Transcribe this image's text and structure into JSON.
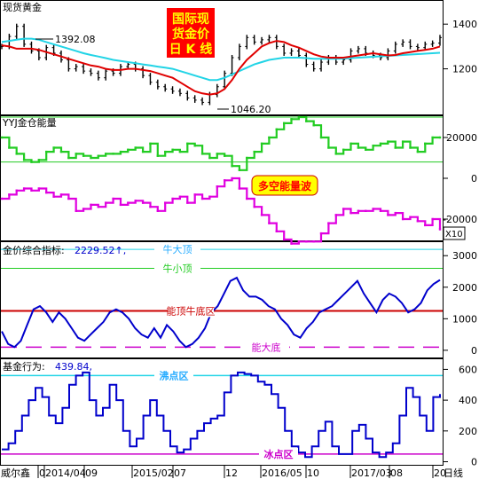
{
  "colors": {
    "price_bar": "#000000",
    "ma_short": "#e00000",
    "ma_long": "#22d4e6",
    "bull_energy": "#22cc22",
    "bear_energy": "#e000e0",
    "ref_green": "#22cc22",
    "indicator_line": "#0000cc",
    "red_line": "#cc0000",
    "cyan_line": "#22d4e6",
    "magenta_line": "#cc00cc",
    "title_box_bg": "#ff0000",
    "title_box_text": "#ffff00",
    "label_box_bg": "#ffff00",
    "label_box_text": "#ff0000"
  },
  "chart_data": [
    {
      "type": "candlestick",
      "panel_title": "现货黄金",
      "title_box": [
        "国际现",
        "货金价",
        "日 K 线"
      ],
      "annotations": [
        "1392.08",
        "1046.20"
      ],
      "ylim": [
        1000,
        1500
      ],
      "yticks": [
        "1400",
        "1200"
      ],
      "ytick_values": [
        1400,
        1200
      ],
      "close": [
        1300,
        1345,
        1390,
        1310,
        1280,
        1250,
        1295,
        1270,
        1240,
        1200,
        1210,
        1190,
        1180,
        1160,
        1190,
        1180,
        1210,
        1220,
        1200,
        1170,
        1140,
        1120,
        1110,
        1100,
        1090,
        1070,
        1060,
        1050,
        1085,
        1120,
        1180,
        1250,
        1300,
        1340,
        1320,
        1330,
        1340,
        1300,
        1270,
        1280,
        1260,
        1220,
        1200,
        1230,
        1250,
        1230,
        1240,
        1280,
        1290,
        1270,
        1260,
        1250,
        1280,
        1310,
        1320,
        1300,
        1295,
        1310,
        1315,
        1340
      ],
      "ma_short": [
        1305,
        1300,
        1290,
        1290,
        1290,
        1285,
        1275,
        1265,
        1255,
        1245,
        1235,
        1225,
        1215,
        1210,
        1200,
        1195,
        1195,
        1200,
        1200,
        1195,
        1190,
        1180,
        1170,
        1160,
        1140,
        1120,
        1100,
        1090,
        1085,
        1090,
        1110,
        1150,
        1200,
        1240,
        1270,
        1300,
        1315,
        1325,
        1320,
        1305,
        1295,
        1280,
        1265,
        1255,
        1250,
        1250,
        1250,
        1255,
        1260,
        1265,
        1270,
        1265,
        1260,
        1262,
        1270,
        1275,
        1280,
        1285,
        1290,
        1300
      ],
      "ma_long": [
        1320,
        1325,
        1330,
        1335,
        1335,
        1330,
        1320,
        1310,
        1300,
        1290,
        1280,
        1270,
        1262,
        1255,
        1248,
        1240,
        1235,
        1230,
        1225,
        1220,
        1215,
        1210,
        1205,
        1200,
        1190,
        1180,
        1170,
        1160,
        1150,
        1150,
        1160,
        1175,
        1190,
        1205,
        1220,
        1230,
        1240,
        1245,
        1250,
        1250,
        1250,
        1248,
        1245,
        1245,
        1245,
        1245,
        1246,
        1248,
        1250,
        1252,
        1254,
        1256,
        1258,
        1260,
        1262,
        1264,
        1266,
        1268,
        1270,
        1272
      ]
    },
    {
      "type": "step",
      "panel_title": "YYJ金仓能量",
      "label_box": "多空能量波",
      "scale_label": "X10",
      "ylim": [
        -30000,
        30000
      ],
      "yticks": [
        "20000",
        "0",
        "-20000"
      ],
      "ytick_values": [
        20000,
        0,
        -20000
      ],
      "reference_lines": [
        30000,
        8000
      ],
      "series": [
        {
          "values": [
            20000,
            15000,
            12000,
            9000,
            8000,
            9000,
            13000,
            15000,
            13000,
            10000,
            12000,
            11000,
            10000,
            11000,
            12000,
            12000,
            13000,
            14000,
            15000,
            13000,
            17000,
            11000,
            13000,
            14000,
            13000,
            17000,
            16000,
            12000,
            10000,
            12000,
            11000,
            6000,
            4000,
            10000,
            13000,
            17000,
            20000,
            24000,
            27000,
            29000,
            30000,
            28000,
            26000,
            20000,
            15000,
            12000,
            14000,
            17000,
            15000,
            14000,
            16000,
            17000,
            18000,
            15000,
            18000,
            15000,
            13000,
            17000,
            20000,
            20000
          ]
        },
        {
          "values": [
            -10000,
            -8000,
            -6000,
            -5000,
            -6000,
            -5000,
            -7000,
            -9000,
            -8000,
            -10000,
            -16000,
            -15000,
            -13000,
            -14000,
            -12000,
            -10000,
            -13000,
            -12000,
            -11000,
            -12000,
            -14000,
            -16000,
            -12000,
            -10000,
            -9000,
            -12000,
            -8000,
            -10000,
            -9000,
            -4000,
            -1000,
            0,
            -5000,
            -10000,
            -14000,
            -18000,
            -22000,
            -26000,
            -30000,
            -32000,
            -31000,
            -31000,
            -31000,
            -27000,
            -22000,
            -18000,
            -15000,
            -17000,
            -16000,
            -16000,
            -15000,
            -16000,
            -18000,
            -17000,
            -20000,
            -19000,
            -21000,
            -23000,
            -20000,
            -25000
          ]
        }
      ]
    },
    {
      "type": "line",
      "panel_title": "金价综合指标:",
      "value_label": "2229.52↑,",
      "ylim": [
        -200,
        3400
      ],
      "yticks": [
        "3000",
        "2000",
        "1000",
        "0"
      ],
      "ytick_values": [
        3000,
        2000,
        1000,
        0
      ],
      "reference_lines": [
        {
          "label": "牛大顶",
          "value": 3200
        },
        {
          "label": "牛小顶",
          "value": 2600
        },
        {
          "label": "能顶牛底区",
          "value": 1250
        },
        {
          "label": "能大底",
          "value": 100
        }
      ],
      "values": [
        600,
        200,
        100,
        300,
        800,
        1300,
        1400,
        1200,
        900,
        1200,
        1000,
        700,
        400,
        300,
        500,
        700,
        900,
        1200,
        1300,
        1200,
        1000,
        700,
        500,
        400,
        700,
        400,
        800,
        600,
        300,
        100,
        200,
        400,
        700,
        1200,
        1400,
        1800,
        2200,
        2300,
        1900,
        1700,
        1700,
        1600,
        1400,
        1300,
        1000,
        800,
        500,
        400,
        700,
        900,
        1200,
        1300,
        1400,
        1600,
        1800,
        2000,
        2200,
        1800,
        1500,
        1200,
        1600,
        1800,
        1700,
        1500,
        1200,
        1300,
        1500,
        1900,
        2100,
        2230
      ]
    },
    {
      "type": "line",
      "panel_title": "基金行为:",
      "value_label": "439.84,",
      "ylim": [
        -20,
        660
      ],
      "yticks": [
        "600",
        "400",
        "200",
        "0"
      ],
      "ytick_values": [
        600,
        400,
        200,
        0
      ],
      "reference_lines": [
        {
          "label": "沸点区",
          "value": 560
        },
        {
          "label": "冰点区",
          "value": 50
        }
      ],
      "values": [
        80,
        120,
        200,
        300,
        400,
        480,
        420,
        300,
        250,
        350,
        500,
        560,
        580,
        400,
        300,
        350,
        500,
        400,
        200,
        100,
        150,
        300,
        400,
        300,
        200,
        100,
        60,
        80,
        150,
        200,
        250,
        280,
        300,
        450,
        560,
        580,
        570,
        560,
        520,
        500,
        440,
        350,
        200,
        100,
        60,
        30,
        100,
        200,
        260,
        100,
        50,
        50,
        200,
        240,
        150,
        60,
        30,
        60,
        120,
        300,
        480,
        420,
        300,
        200,
        420,
        440
      ]
    },
    {
      "type": "axis",
      "x_labels": [
        "威尔鑫",
        "0",
        "2014/04",
        "09",
        "2015/02",
        "07",
        "12",
        "2016/05",
        "10",
        "2017/03",
        "08",
        "20",
        "日线"
      ]
    }
  ]
}
